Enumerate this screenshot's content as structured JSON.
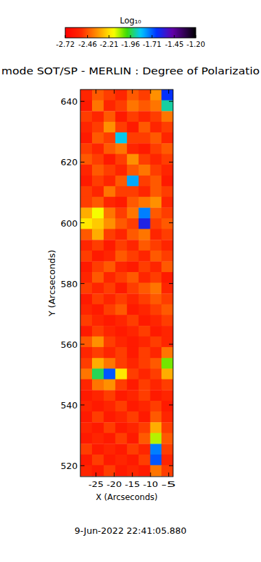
{
  "chart_data": {
    "type": "heatmap",
    "title": "mode SOT/SP - MERLIN : Degree of Polarizatio",
    "xlabel": "X (Arcseconds)",
    "ylabel": "Y (Arcseconds)",
    "annotations": [
      "9-Jun-2022 22:41:05.880"
    ],
    "xlim": [
      -29.3,
      -3.8
    ],
    "ylim": [
      516.4,
      643.9
    ],
    "xticks": [
      -25,
      -20,
      -15,
      -10,
      -5
    ],
    "yticks": [
      520,
      540,
      560,
      580,
      600,
      620,
      640
    ],
    "x": [
      -27.7,
      -24.5,
      -21.3,
      -18.1,
      -14.9,
      -11.7,
      -8.5,
      -5.4
    ],
    "y": [
      642.1,
      638.6,
      635.0,
      631.5,
      628.0,
      624.4,
      620.9,
      617.4,
      613.8,
      610.3,
      606.8,
      603.2,
      599.7,
      596.2,
      592.6,
      589.1,
      585.5,
      582.0,
      578.5,
      574.9,
      571.4,
      567.9,
      564.3,
      560.8,
      557.3,
      553.7,
      550.2,
      546.7,
      543.1,
      539.6,
      536.1,
      532.5,
      529.0,
      525.4,
      521.9,
      518.4
    ],
    "cells": [
      [
        -2.55,
        -2.45,
        -2.5,
        -2.55,
        -2.45,
        -2.5,
        -2.35,
        -1.65
      ],
      [
        -2.6,
        -2.4,
        -2.55,
        -2.5,
        -2.4,
        -2.45,
        -2.4,
        -1.9
      ],
      [
        -2.5,
        -2.55,
        -2.45,
        -2.6,
        -2.5,
        -2.55,
        -2.5,
        -2.4
      ],
      [
        -2.55,
        -2.5,
        -2.35,
        -2.5,
        -2.6,
        -2.45,
        -2.55,
        -2.5
      ],
      [
        -2.6,
        -2.45,
        -2.5,
        -1.85,
        -2.5,
        -2.5,
        -2.45,
        -2.55
      ],
      [
        -2.5,
        -2.55,
        -2.45,
        -2.4,
        -2.55,
        -2.6,
        -2.5,
        -2.45
      ],
      [
        -2.45,
        -2.5,
        -2.6,
        -2.5,
        -2.35,
        -2.5,
        -2.55,
        -2.5
      ],
      [
        -2.55,
        -2.45,
        -2.5,
        -2.55,
        -2.45,
        -2.4,
        -2.5,
        -2.55
      ],
      [
        -2.6,
        -2.5,
        -2.55,
        -2.45,
        -1.8,
        -2.5,
        -2.45,
        -2.6
      ],
      [
        -2.5,
        -2.55,
        -2.4,
        -2.5,
        -2.5,
        -2.55,
        -2.45,
        -2.5
      ],
      [
        -2.5,
        -2.45,
        -2.55,
        -2.6,
        -2.45,
        -2.4,
        -2.35,
        -2.55
      ],
      [
        -2.3,
        -2.15,
        -2.4,
        -2.5,
        -2.4,
        -1.75,
        -2.45,
        -2.5
      ],
      [
        -2.2,
        -2.25,
        -2.35,
        -2.45,
        -2.5,
        -1.6,
        -2.5,
        -2.45
      ],
      [
        -2.45,
        -2.3,
        -2.5,
        -2.55,
        -2.45,
        -2.4,
        -2.55,
        -2.5
      ],
      [
        -2.55,
        -2.5,
        -2.6,
        -2.5,
        -2.55,
        -2.45,
        -2.5,
        -2.55
      ],
      [
        -2.5,
        -2.6,
        -2.55,
        -2.45,
        -2.5,
        -2.55,
        -2.45,
        -2.5
      ],
      [
        -2.6,
        -2.5,
        -2.45,
        -2.55,
        -2.6,
        -2.5,
        -2.55,
        -2.45
      ],
      [
        -2.55,
        -2.45,
        -2.55,
        -2.5,
        -2.45,
        -2.55,
        -2.5,
        -2.6
      ],
      [
        -2.5,
        -2.55,
        -2.5,
        -2.6,
        -2.5,
        -2.45,
        -2.4,
        -2.55
      ],
      [
        -2.6,
        -2.5,
        -2.55,
        -2.5,
        -2.55,
        -2.5,
        -2.45,
        -2.5
      ],
      [
        -2.55,
        -2.6,
        -2.5,
        -2.45,
        -2.6,
        -2.55,
        -2.5,
        -2.45
      ],
      [
        -2.5,
        -2.55,
        -2.6,
        -2.55,
        -2.5,
        -2.6,
        -2.55,
        -2.5
      ],
      [
        -2.6,
        -2.5,
        -2.55,
        -2.6,
        -2.55,
        -2.5,
        -2.6,
        -2.55
      ],
      [
        -2.45,
        -2.35,
        -2.5,
        -2.55,
        -2.6,
        -2.55,
        -2.5,
        -2.55
      ],
      [
        -2.55,
        -2.5,
        -2.55,
        -2.5,
        -2.6,
        -2.5,
        -2.55,
        -2.4
      ],
      [
        -2.5,
        -2.3,
        -2.4,
        -2.5,
        -2.55,
        -2.5,
        -2.45,
        -2.05
      ],
      [
        -2.4,
        -1.95,
        -1.7,
        -2.2,
        -2.5,
        -2.55,
        -2.5,
        -2.3
      ],
      [
        -2.55,
        -2.4,
        -2.35,
        -2.5,
        -2.6,
        -2.5,
        -2.55,
        -2.5
      ],
      [
        -2.6,
        -2.55,
        -2.5,
        -2.6,
        -2.55,
        -2.5,
        -2.6,
        -2.55
      ],
      [
        -2.55,
        -2.6,
        -2.55,
        -2.5,
        -2.6,
        -2.55,
        -2.5,
        -2.6
      ],
      [
        -2.6,
        -2.5,
        -2.6,
        -2.55,
        -2.5,
        -2.6,
        -2.45,
        -2.55
      ],
      [
        -2.55,
        -2.6,
        -2.5,
        -2.6,
        -2.55,
        -2.5,
        -2.3,
        -2.5
      ],
      [
        -2.6,
        -2.55,
        -2.6,
        -2.5,
        -2.6,
        -2.45,
        -2.1,
        -2.45
      ],
      [
        -2.5,
        -2.6,
        -2.55,
        -2.6,
        -2.5,
        -2.55,
        -1.75,
        -2.5
      ],
      [
        -2.6,
        -2.5,
        -2.6,
        -2.55,
        -2.6,
        -2.5,
        -1.7,
        -2.55
      ],
      [
        -2.55,
        -2.6,
        -2.5,
        -2.6,
        -2.55,
        -2.6,
        -2.4,
        -2.5
      ]
    ],
    "colorbar": {
      "label": "Log₁₀",
      "range": [
        -2.72,
        -1.2
      ],
      "ticks": [
        -2.72,
        -2.46,
        -2.21,
        -1.96,
        -1.71,
        -1.45,
        {
          "value": -1.2,
          "label": "-1.20"
        }
      ]
    }
  }
}
